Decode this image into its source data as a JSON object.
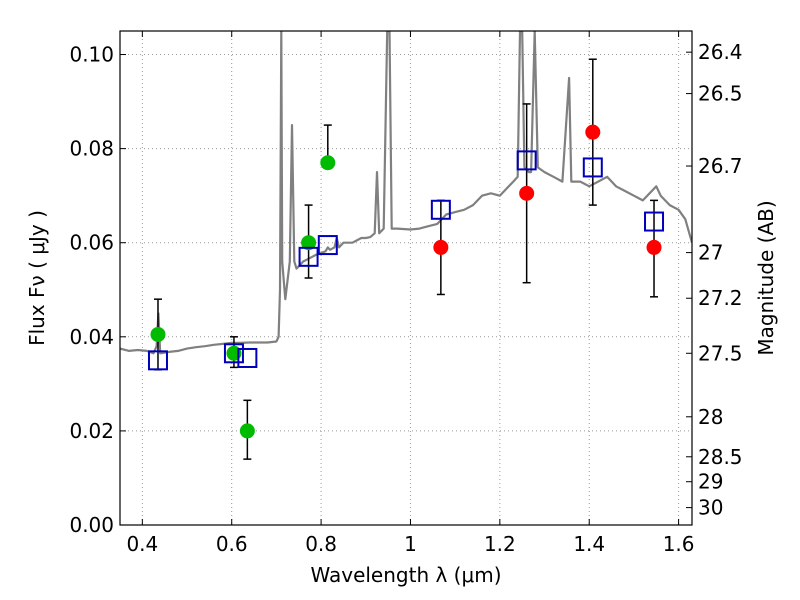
{
  "chart_data": {
    "type": "scatter",
    "xlabel": "Wavelength  λ (μm)",
    "ylabel": "Flux  Fν  ( μJy )",
    "y2label": "Magnitude (AB)",
    "xlim": [
      0.35,
      1.63
    ],
    "ylim": [
      0.0,
      0.105
    ],
    "grid": true,
    "x_ticks": [
      0.4,
      0.6,
      0.8,
      1.0,
      1.2,
      1.4,
      1.6
    ],
    "x_tick_labels": [
      "0.4",
      "0.6",
      "0.8",
      "1",
      "1.2",
      "1.4",
      "1.6"
    ],
    "y_ticks": [
      0.0,
      0.02,
      0.04,
      0.06,
      0.08,
      0.1
    ],
    "y_tick_labels": [
      "0.00",
      "0.02",
      "0.04",
      "0.06",
      "0.08",
      "0.10"
    ],
    "y2_ticks": [
      {
        "label": "26.4",
        "flux": 0.1005
      },
      {
        "label": "26.5",
        "flux": 0.0917
      },
      {
        "label": "26.7",
        "flux": 0.0763
      },
      {
        "label": "27",
        "flux": 0.0579
      },
      {
        "label": "27.2",
        "flux": 0.0482
      },
      {
        "label": "27.5",
        "flux": 0.0365
      },
      {
        "label": "28",
        "flux": 0.023
      },
      {
        "label": "28.5",
        "flux": 0.0145
      },
      {
        "label": "29",
        "flux": 0.0092
      },
      {
        "label": "30",
        "flux": 0.0037
      }
    ],
    "colors": {
      "spectrum": "#808080",
      "green_points": "#00bb00",
      "red_points": "#ff0000",
      "model_squares": "#0000bb",
      "errorbars": "#000000",
      "grid": "#999999"
    },
    "series": [
      {
        "marker": "circle",
        "color": "#00bb00",
        "points": [
          {
            "x": 0.435,
            "y": 0.0405,
            "yerr_low": 0.0075,
            "yerr_high": 0.0075
          },
          {
            "x": 0.605,
            "y": 0.0365,
            "yerr_low": 0.003,
            "yerr_high": 0.0035
          },
          {
            "x": 0.635,
            "y": 0.02,
            "yerr_low": 0.006,
            "yerr_high": 0.0065
          },
          {
            "x": 0.772,
            "y": 0.06,
            "yerr_low": 0.0075,
            "yerr_high": 0.008
          },
          {
            "x": 0.815,
            "y": 0.077,
            "yerr_low": 0.0,
            "yerr_high": 0.008
          }
        ]
      },
      {
        "marker": "circle",
        "color": "#ff0000",
        "points": [
          {
            "x": 1.068,
            "y": 0.059,
            "yerr_low": 0.01,
            "yerr_high": 0.01
          },
          {
            "x": 1.26,
            "y": 0.0705,
            "yerr_low": 0.019,
            "yerr_high": 0.019
          },
          {
            "x": 1.408,
            "y": 0.0835,
            "yerr_low": 0.0155,
            "yerr_high": 0.0155
          },
          {
            "x": 1.545,
            "y": 0.059,
            "yerr_low": 0.0105,
            "yerr_high": 0.01
          }
        ]
      },
      {
        "marker": "open-square",
        "color": "#0000bb",
        "points": [
          {
            "x": 0.435,
            "y": 0.035
          },
          {
            "x": 0.605,
            "y": 0.0365
          },
          {
            "x": 0.635,
            "y": 0.0355
          },
          {
            "x": 0.772,
            "y": 0.057
          },
          {
            "x": 0.815,
            "y": 0.0595
          },
          {
            "x": 1.068,
            "y": 0.067
          },
          {
            "x": 1.26,
            "y": 0.0775
          },
          {
            "x": 1.408,
            "y": 0.076
          },
          {
            "x": 1.545,
            "y": 0.0645
          }
        ]
      }
    ],
    "spectrum": [
      [
        0.35,
        0.0375
      ],
      [
        0.37,
        0.037
      ],
      [
        0.39,
        0.0372
      ],
      [
        0.41,
        0.037
      ],
      [
        0.425,
        0.0365
      ],
      [
        0.432,
        0.038
      ],
      [
        0.436,
        0.045
      ],
      [
        0.44,
        0.0365
      ],
      [
        0.46,
        0.0368
      ],
      [
        0.48,
        0.037
      ],
      [
        0.5,
        0.0375
      ],
      [
        0.52,
        0.0378
      ],
      [
        0.54,
        0.038
      ],
      [
        0.56,
        0.0383
      ],
      [
        0.58,
        0.0385
      ],
      [
        0.6,
        0.0387
      ],
      [
        0.62,
        0.0387
      ],
      [
        0.64,
        0.0388
      ],
      [
        0.66,
        0.0388
      ],
      [
        0.68,
        0.0388
      ],
      [
        0.7,
        0.039
      ],
      [
        0.705,
        0.04
      ],
      [
        0.708,
        0.05
      ],
      [
        0.711,
        0.105
      ],
      [
        0.713,
        0.056
      ],
      [
        0.72,
        0.048
      ],
      [
        0.73,
        0.056
      ],
      [
        0.735,
        0.085
      ],
      [
        0.74,
        0.056
      ],
      [
        0.745,
        0.0545
      ],
      [
        0.75,
        0.055
      ],
      [
        0.76,
        0.056
      ],
      [
        0.77,
        0.0565
      ],
      [
        0.78,
        0.057
      ],
      [
        0.79,
        0.0575
      ],
      [
        0.8,
        0.0578
      ],
      [
        0.81,
        0.0582
      ],
      [
        0.815,
        0.059
      ],
      [
        0.82,
        0.0585
      ],
      [
        0.83,
        0.059
      ],
      [
        0.835,
        0.061
      ],
      [
        0.84,
        0.059
      ],
      [
        0.85,
        0.06
      ],
      [
        0.87,
        0.06
      ],
      [
        0.88,
        0.0605
      ],
      [
        0.89,
        0.061
      ],
      [
        0.9,
        0.061
      ],
      [
        0.91,
        0.0612
      ],
      [
        0.92,
        0.062
      ],
      [
        0.925,
        0.075
      ],
      [
        0.93,
        0.062
      ],
      [
        0.94,
        0.063
      ],
      [
        0.948,
        0.105
      ],
      [
        0.953,
        0.105
      ],
      [
        0.958,
        0.063
      ],
      [
        0.97,
        0.063
      ],
      [
        1.0,
        0.0628
      ],
      [
        1.02,
        0.063
      ],
      [
        1.04,
        0.0635
      ],
      [
        1.06,
        0.064
      ],
      [
        1.08,
        0.066
      ],
      [
        1.1,
        0.0665
      ],
      [
        1.12,
        0.067
      ],
      [
        1.14,
        0.068
      ],
      [
        1.16,
        0.07
      ],
      [
        1.18,
        0.0705
      ],
      [
        1.2,
        0.07
      ],
      [
        1.21,
        0.071
      ],
      [
        1.22,
        0.072
      ],
      [
        1.23,
        0.073
      ],
      [
        1.24,
        0.074
      ],
      [
        1.245,
        0.105
      ],
      [
        1.25,
        0.105
      ],
      [
        1.255,
        0.076
      ],
      [
        1.265,
        0.075
      ],
      [
        1.27,
        0.075
      ],
      [
        1.278,
        0.105
      ],
      [
        1.285,
        0.076
      ],
      [
        1.3,
        0.075
      ],
      [
        1.32,
        0.074
      ],
      [
        1.34,
        0.073
      ],
      [
        1.355,
        0.095
      ],
      [
        1.36,
        0.073
      ],
      [
        1.38,
        0.073
      ],
      [
        1.4,
        0.072
      ],
      [
        1.42,
        0.073
      ],
      [
        1.44,
        0.074
      ],
      [
        1.46,
        0.072
      ],
      [
        1.48,
        0.071
      ],
      [
        1.5,
        0.07
      ],
      [
        1.52,
        0.069
      ],
      [
        1.54,
        0.071
      ],
      [
        1.55,
        0.072
      ],
      [
        1.56,
        0.07
      ],
      [
        1.58,
        0.068
      ],
      [
        1.6,
        0.067
      ],
      [
        1.615,
        0.065
      ],
      [
        1.63,
        0.06
      ]
    ]
  }
}
